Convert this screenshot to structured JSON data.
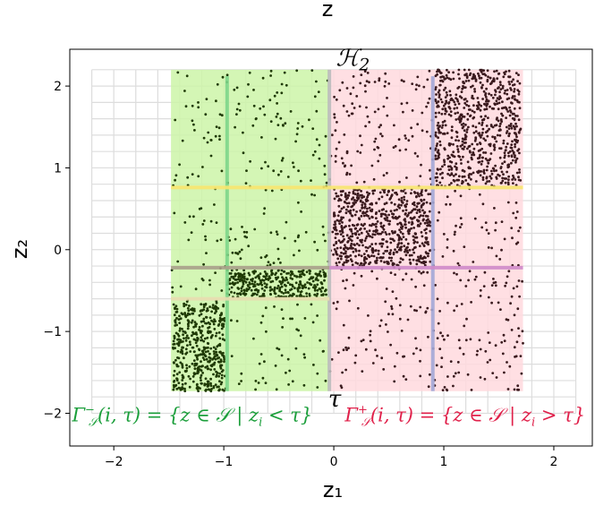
{
  "chart_data": {
    "type": "scatter",
    "title": "z",
    "xlabel": "z₁",
    "ylabel": "z₂",
    "xlim": [
      -2.4,
      2.35
    ],
    "ylim": [
      -2.4,
      2.45
    ],
    "xticks": [
      -2,
      -1,
      0,
      1,
      2
    ],
    "yticks": [
      -2,
      -1,
      0,
      1,
      2
    ],
    "xtick_labels": [
      "−2",
      "−1",
      "0",
      "1",
      "2"
    ],
    "ytick_labels": [
      "−2",
      "−1",
      "0",
      "1",
      "2"
    ],
    "grid": {
      "x0": -2.2,
      "x1": 2.2,
      "y0": -2.0,
      "y1": 2.2,
      "step": 0.2,
      "color": "#dddddd"
    },
    "regions": [
      {
        "x0": -1.48,
        "x1": -0.04,
        "y0": -1.73,
        "y1": 2.2,
        "color": "#ccf5a8"
      },
      {
        "x0": -0.04,
        "x1": 1.72,
        "y0": -1.73,
        "y1": 2.2,
        "color": "#ffd9de"
      }
    ],
    "split_lines": [
      {
        "orientation": "vertical",
        "at": -0.04,
        "from": -1.73,
        "to": 2.2,
        "color": "#bbbbbb"
      },
      {
        "orientation": "vertical",
        "at": -0.97,
        "from": -1.73,
        "to": 2.12,
        "color": "#7dd68a"
      },
      {
        "orientation": "vertical",
        "at": 0.9,
        "from": -1.73,
        "to": 2.12,
        "color": "#a3a7d6"
      },
      {
        "orientation": "horizontal",
        "at": 0.76,
        "from": -1.48,
        "to": 1.72,
        "color": "#f7e66e"
      },
      {
        "orientation": "horizontal",
        "at": -0.22,
        "from": -1.48,
        "to": -0.04,
        "color": "#a8a08a"
      },
      {
        "orientation": "horizontal",
        "at": -0.22,
        "from": -0.04,
        "to": 1.72,
        "color": "#cf8ac9"
      },
      {
        "orientation": "horizontal",
        "at": -0.6,
        "from": -1.48,
        "to": -0.04,
        "color": "#e8ddb0"
      }
    ],
    "point_groups": [
      {
        "x0": -1.48,
        "x1": -0.04,
        "y0": -1.73,
        "y1": 2.2,
        "n": 330,
        "color": "#1f3a05"
      },
      {
        "x0": -1.46,
        "x1": -0.99,
        "y0": -1.73,
        "y1": -0.63,
        "n": 420,
        "color": "#1f3a05"
      },
      {
        "x0": -0.97,
        "x1": -0.06,
        "y0": -0.58,
        "y1": -0.25,
        "n": 320,
        "color": "#1f3a05"
      },
      {
        "x0": -0.04,
        "x1": 1.72,
        "y0": -1.73,
        "y1": 2.2,
        "n": 560,
        "color": "#3a1a1e"
      },
      {
        "x0": 0.0,
        "x1": 0.88,
        "y0": -0.2,
        "y1": 0.74,
        "n": 620,
        "color": "#3a1a1e"
      },
      {
        "x0": 0.92,
        "x1": 1.7,
        "y0": 0.78,
        "y1": 2.2,
        "n": 620,
        "color": "#3a1a1e"
      }
    ],
    "annotations": {
      "h2": {
        "text": "ℋ",
        "sub": "2",
        "x": 0.02,
        "y": 2.25,
        "color": "#000000"
      },
      "tau": {
        "text": "τ",
        "x": -0.05,
        "y": -1.92,
        "color": "#000000"
      },
      "gamma_minus": {
        "text": "Γ",
        "sup": "−",
        "sub": "𝒮",
        "rest": "(i, τ) = {z ∈ 𝒮 | z",
        "sub2": "i",
        "tail": " < τ}",
        "x": -2.38,
        "y": -2.1,
        "color": "#1a9e3a"
      },
      "gamma_plus": {
        "text": "Γ",
        "sup": "+",
        "sub": "𝒮",
        "rest": "(i, τ) = {z ∈ 𝒮 | z",
        "sub2": "i",
        "tail": " > τ}",
        "x": 0.1,
        "y": -2.1,
        "color": "#e0204a"
      }
    }
  }
}
